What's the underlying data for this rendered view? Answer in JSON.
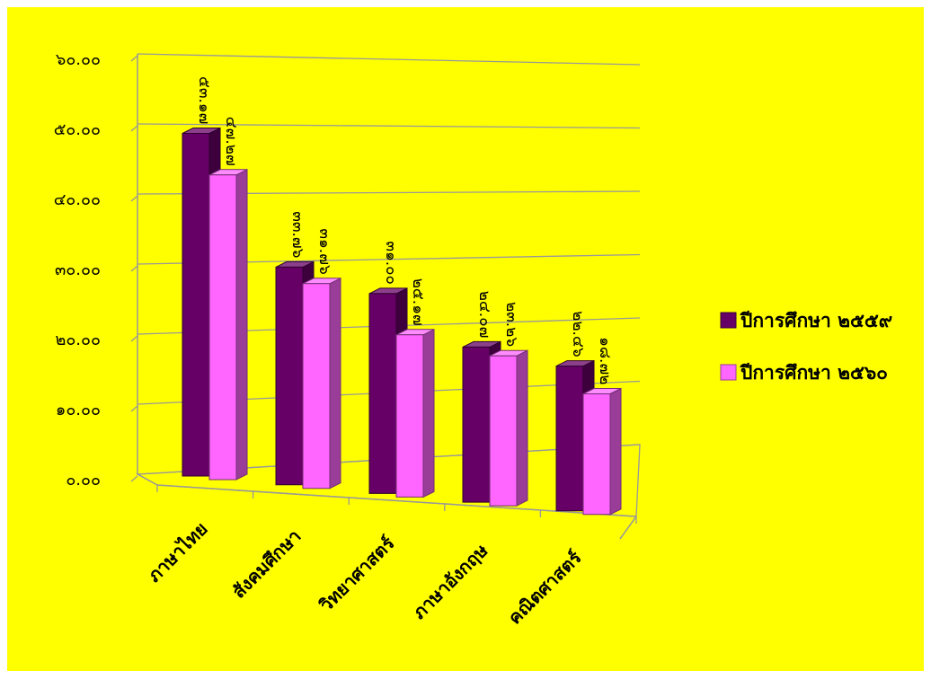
{
  "chart_data": {
    "type": "bar",
    "title": "",
    "xlabel": "",
    "ylabel": "",
    "categories": [
      "ภาษาไทย",
      "สังคมศึกษา",
      "วิทยาศาสตร์",
      "ภาษาอังกฤษ",
      "คณิตศาสตร์"
    ],
    "series": [
      {
        "name": "ปีการศึกษา ๒๕๕๙",
        "values": [
          53.17,
          33.76,
          31.0,
          24.07,
          22.46
        ],
        "labels": [
          "๕๓.๑๗",
          "๓๓.๗๖",
          "๓๑.๐๐",
          "๒๔.๐๗",
          "๒๒.๔๖"
        ]
      },
      {
        "name": "ปีการศึกษา ๒๕๖๐",
        "values": [
          47.27,
          31.76,
          25.17,
          23.26,
          18.72
        ],
        "labels": [
          "๔๗.๒๗",
          "๓๑.๗๖",
          "๒๕.๑๗",
          "๒๓.๒๖",
          "๑๘.๗๒"
        ]
      }
    ],
    "ylim": [
      0,
      60
    ],
    "yticks": [
      0,
      10,
      20,
      30,
      40,
      50,
      60
    ],
    "ytick_labels": [
      "๐.๐๐",
      "๑๐.๐๐",
      "๒๐.๐๐",
      "๓๐.๐๐",
      "๔๐.๐๐",
      "๕๐.๐๐",
      "๖๐.๐๐"
    ],
    "grid": true,
    "three_d": true,
    "legend_position": "right",
    "colors": {
      "background": "#ffff00",
      "series_1": "#660066",
      "series_2": "#ff66ff",
      "grid": "#999999",
      "text": "#000000"
    }
  }
}
